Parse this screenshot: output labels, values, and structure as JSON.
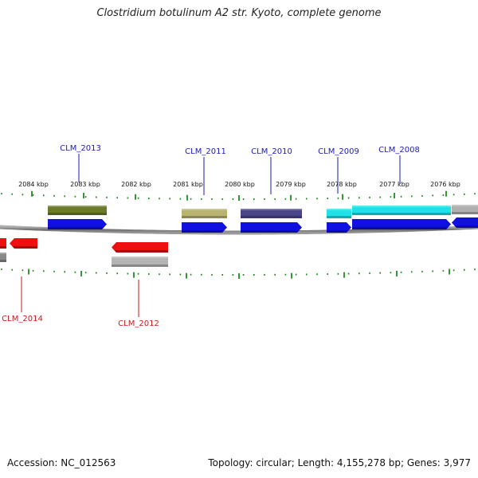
{
  "title": "Clostridium botulinum A2 str. Kyoto, complete genome",
  "footer": {
    "accession": "Accession: NC_012563",
    "topology": "Topology: circular; Length: 4,155,278 bp; Genes: 3,977"
  },
  "colors": {
    "forward_gene": "#1010e0",
    "reverse_gene": "#ee1010",
    "backbone": "#8a8a8a",
    "tick": "#1e8a1e",
    "upper_label": "#1a1ab5",
    "lower_label": "#c41a1a"
  },
  "kbp_labels": [
    "2084 kbp",
    "2083 kbp",
    "2082 kbp",
    "2081 kbp",
    "2080 kbp",
    "2079 kbp",
    "2078 kbp",
    "2077 kbp",
    "2076 kbp"
  ],
  "forward_genes": [
    {
      "id": "CLM_2013",
      "cog_color": "#6b7a2a"
    },
    {
      "id": "CLM_2011",
      "cog_color": "#b8b470"
    },
    {
      "id": "CLM_2010",
      "cog_color": "#4a4488"
    },
    {
      "id": "CLM_2009",
      "cog_color": "#22e0e8"
    },
    {
      "id": "CLM_2008",
      "cog_color": "#22e0e8"
    },
    {
      "id": "",
      "cog_color": "#b0b0b0"
    }
  ],
  "reverse_genes": [
    {
      "id": "CLM_2014",
      "cog_color": "#8a8a8a"
    },
    {
      "id": "",
      "cog_color": ""
    },
    {
      "id": "CLM_2012",
      "cog_color": "#b4b4b4"
    }
  ]
}
